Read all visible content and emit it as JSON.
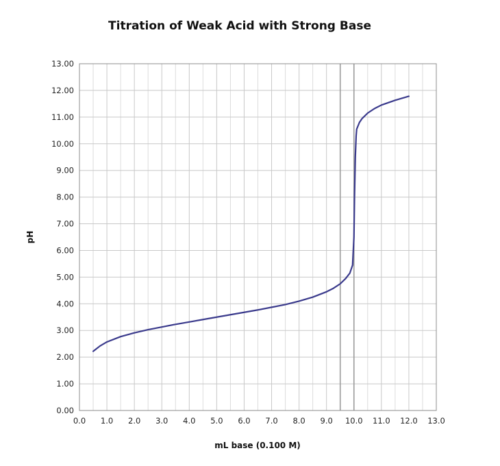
{
  "chart_data": {
    "type": "line",
    "title": "Titration of Weak Acid with Strong Base",
    "xlabel": "mL base (0.100 M)",
    "ylabel": "pH",
    "xlim": [
      0,
      13
    ],
    "ylim": [
      0,
      13
    ],
    "x_ticks": [
      "0.0",
      "1.0",
      "2.0",
      "3.0",
      "4.0",
      "5.0",
      "6.0",
      "7.0",
      "8.0",
      "9.0",
      "10.0",
      "11.0",
      "12.0",
      "13.0"
    ],
    "y_ticks": [
      "0.00",
      "1.00",
      "2.00",
      "3.00",
      "4.00",
      "5.00",
      "6.00",
      "7.00",
      "8.00",
      "9.00",
      "10.00",
      "11.00",
      "12.00",
      "13.00"
    ],
    "grid": true,
    "reference_lines_x": [
      9.5,
      10.0
    ],
    "series": [
      {
        "color": "#3a3a8c",
        "x": [
          0.5,
          0.75,
          1.0,
          1.5,
          2.0,
          2.5,
          3.0,
          3.5,
          4.0,
          4.5,
          5.0,
          5.5,
          6.0,
          6.5,
          7.0,
          7.5,
          8.0,
          8.5,
          9.0,
          9.25,
          9.5,
          9.7,
          9.85,
          9.95,
          10.0,
          10.02,
          10.05,
          10.08,
          10.1,
          10.2,
          10.3,
          10.5,
          10.75,
          11.0,
          11.5,
          12.0
        ],
        "y": [
          2.22,
          2.42,
          2.57,
          2.77,
          2.91,
          3.03,
          3.13,
          3.23,
          3.32,
          3.41,
          3.5,
          3.59,
          3.68,
          3.77,
          3.87,
          3.97,
          4.1,
          4.25,
          4.45,
          4.58,
          4.75,
          4.95,
          5.15,
          5.45,
          6.5,
          8.0,
          9.5,
          10.3,
          10.55,
          10.8,
          10.95,
          11.15,
          11.32,
          11.45,
          11.63,
          11.78
        ]
      }
    ]
  }
}
